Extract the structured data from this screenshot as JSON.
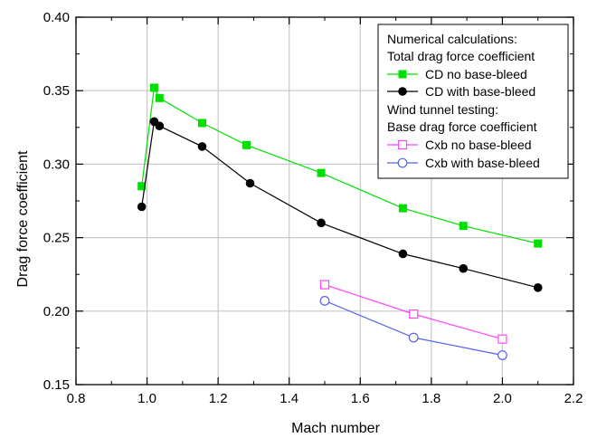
{
  "chart_data": {
    "type": "line",
    "xlabel": "Mach number",
    "ylabel": "Drag force coefficient",
    "xlim": [
      0.8,
      2.2
    ],
    "ylim": [
      0.15,
      0.4
    ],
    "xticks": [
      "0.8",
      "1.0",
      "1.2",
      "1.4",
      "1.6",
      "1.8",
      "2.0",
      "2.2"
    ],
    "yticks": [
      "0.15",
      "0.20",
      "0.25",
      "0.30",
      "0.35",
      "0.40"
    ],
    "grid": true,
    "legend_position": "top-right",
    "legend": {
      "heading1": "Numerical calculations:",
      "heading2": "Total drag force coefficient",
      "heading3": "Wind tunnel testing:",
      "heading4": "Base drag force coefficient"
    },
    "series": [
      {
        "name": "CD no base-bleed",
        "color": "#00e000",
        "marker": "filled-square",
        "x": [
          0.985,
          1.02,
          1.035,
          1.155,
          1.28,
          1.49,
          1.72,
          1.89,
          2.1
        ],
        "y": [
          0.285,
          0.352,
          0.345,
          0.328,
          0.313,
          0.294,
          0.27,
          0.258,
          0.246
        ]
      },
      {
        "name": "CD with base-bleed",
        "color": "#000000",
        "marker": "filled-circle",
        "x": [
          0.985,
          1.02,
          1.035,
          1.155,
          1.29,
          1.49,
          1.72,
          1.89,
          2.1
        ],
        "y": [
          0.271,
          0.329,
          0.326,
          0.312,
          0.287,
          0.26,
          0.239,
          0.229,
          0.216
        ]
      },
      {
        "name": "Cxb no base-bleed",
        "color": "#ff44ff",
        "marker": "open-square",
        "x": [
          1.5,
          1.75,
          2.0
        ],
        "y": [
          0.218,
          0.198,
          0.181
        ]
      },
      {
        "name": "Cxb with base-bleed",
        "color": "#5560ee",
        "marker": "open-circle",
        "x": [
          1.5,
          1.75,
          2.0
        ],
        "y": [
          0.207,
          0.182,
          0.17
        ]
      }
    ]
  }
}
